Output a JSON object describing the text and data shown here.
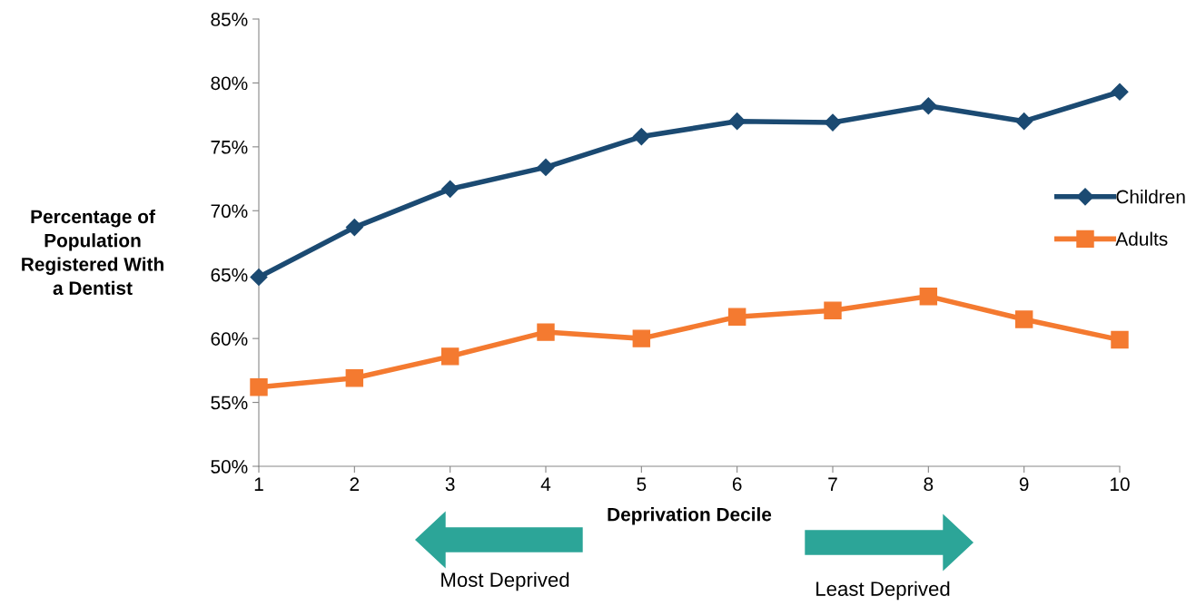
{
  "chart_data": {
    "type": "line",
    "ylabel": "Percentage of\nPopulation\nRegistered With\na Dentist",
    "xlabel": "Deprivation Decile",
    "x": [
      1,
      2,
      3,
      4,
      5,
      6,
      7,
      8,
      9,
      10
    ],
    "series": [
      {
        "name": "Children",
        "color": "#1b4a72",
        "marker": "diamond",
        "values": [
          64.8,
          68.7,
          71.7,
          73.4,
          75.8,
          77.0,
          76.9,
          78.2,
          77.0,
          79.3
        ]
      },
      {
        "name": "Adults",
        "color": "#f47a30",
        "marker": "square",
        "values": [
          56.2,
          56.9,
          58.6,
          60.5,
          60.0,
          61.7,
          62.2,
          63.3,
          61.5,
          59.9
        ]
      }
    ],
    "xlim": [
      1,
      10
    ],
    "xticks": [
      1,
      2,
      3,
      4,
      5,
      6,
      7,
      8,
      9,
      10
    ],
    "ylim": [
      50,
      85
    ],
    "yticks": [
      {
        "value": 50,
        "label": "50%"
      },
      {
        "value": 55,
        "label": "55%"
      },
      {
        "value": 60,
        "label": "60%"
      },
      {
        "value": 65,
        "label": "65%"
      },
      {
        "value": 70,
        "label": "70%"
      },
      {
        "value": 75,
        "label": "75%"
      },
      {
        "value": 80,
        "label": "80%"
      },
      {
        "value": 85,
        "label": "85%"
      }
    ],
    "grid": false,
    "legend": "right",
    "line_style": "solid",
    "annotations": [
      "Most Deprived",
      "Least Deprived"
    ]
  }
}
